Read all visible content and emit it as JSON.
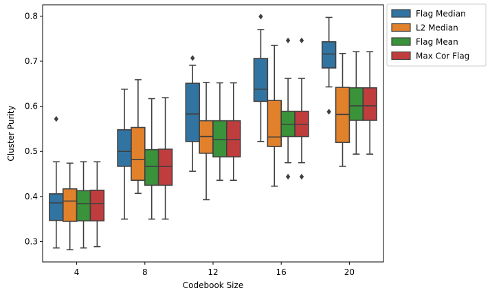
{
  "chart_data": {
    "type": "boxplot",
    "xlabel": "Codebook Size",
    "ylabel": "Cluster Purity",
    "categories": [
      "4",
      "8",
      "12",
      "16",
      "20"
    ],
    "ylim": [
      0.255,
      0.825
    ],
    "yticks": [
      0.3,
      0.4,
      0.5,
      0.6,
      0.7,
      0.8
    ],
    "ytick_labels": [
      "0.3",
      "0.4",
      "0.5",
      "0.6",
      "0.7",
      "0.8"
    ],
    "legend_position": "outside-top-right",
    "grid": false,
    "series": [
      {
        "name": "Flag Median",
        "color": "#3274a1",
        "boxes": [
          {
            "whislo": 0.286,
            "q1": 0.347,
            "med": 0.386,
            "q3": 0.406,
            "whishi": 0.477,
            "fliers": [
              0.572
            ]
          },
          {
            "whislo": 0.35,
            "q1": 0.467,
            "med": 0.5,
            "q3": 0.548,
            "whishi": 0.638,
            "fliers": []
          },
          {
            "whislo": 0.456,
            "q1": 0.522,
            "med": 0.583,
            "q3": 0.651,
            "whishi": 0.691,
            "fliers": [
              0.707
            ]
          },
          {
            "whislo": 0.522,
            "q1": 0.611,
            "med": 0.638,
            "q3": 0.706,
            "whishi": 0.77,
            "fliers": [
              0.799
            ]
          },
          {
            "whislo": 0.643,
            "q1": 0.685,
            "med": 0.716,
            "q3": 0.743,
            "whishi": 0.797,
            "fliers": [
              0.588
            ]
          }
        ]
      },
      {
        "name": "L2 Median",
        "color": "#e1812c",
        "boxes": [
          {
            "whislo": 0.282,
            "q1": 0.345,
            "med": 0.39,
            "q3": 0.417,
            "whishi": 0.474,
            "fliers": []
          },
          {
            "whislo": 0.407,
            "q1": 0.436,
            "med": 0.482,
            "q3": 0.553,
            "whishi": 0.659,
            "fliers": []
          },
          {
            "whislo": 0.393,
            "q1": 0.496,
            "med": 0.533,
            "q3": 0.568,
            "whishi": 0.653,
            "fliers": []
          },
          {
            "whislo": 0.423,
            "q1": 0.511,
            "med": 0.532,
            "q3": 0.613,
            "whishi": 0.735,
            "fliers": []
          },
          {
            "whislo": 0.467,
            "q1": 0.52,
            "med": 0.582,
            "q3": 0.642,
            "whishi": 0.717,
            "fliers": []
          }
        ]
      },
      {
        "name": "Flag Mean",
        "color": "#3a923a",
        "boxes": [
          {
            "whislo": 0.286,
            "q1": 0.346,
            "med": 0.384,
            "q3": 0.413,
            "whishi": 0.477,
            "fliers": []
          },
          {
            "whislo": 0.35,
            "q1": 0.425,
            "med": 0.467,
            "q3": 0.504,
            "whishi": 0.617,
            "fliers": []
          },
          {
            "whislo": 0.436,
            "q1": 0.488,
            "med": 0.526,
            "q3": 0.568,
            "whishi": 0.652,
            "fliers": []
          },
          {
            "whislo": 0.475,
            "q1": 0.533,
            "med": 0.56,
            "q3": 0.589,
            "whishi": 0.662,
            "fliers": [
              0.746,
              0.444
            ]
          },
          {
            "whislo": 0.494,
            "q1": 0.569,
            "med": 0.601,
            "q3": 0.641,
            "whishi": 0.721,
            "fliers": []
          }
        ]
      },
      {
        "name": "Max Cor Flag",
        "color": "#c03d3e",
        "boxes": [
          {
            "whislo": 0.289,
            "q1": 0.346,
            "med": 0.384,
            "q3": 0.414,
            "whishi": 0.477,
            "fliers": []
          },
          {
            "whislo": 0.35,
            "q1": 0.425,
            "med": 0.467,
            "q3": 0.505,
            "whishi": 0.619,
            "fliers": []
          },
          {
            "whislo": 0.436,
            "q1": 0.488,
            "med": 0.526,
            "q3": 0.568,
            "whishi": 0.652,
            "fliers": []
          },
          {
            "whislo": 0.475,
            "q1": 0.533,
            "med": 0.56,
            "q3": 0.589,
            "whishi": 0.662,
            "fliers": [
              0.746,
              0.444
            ]
          },
          {
            "whislo": 0.494,
            "q1": 0.569,
            "med": 0.601,
            "q3": 0.641,
            "whishi": 0.721,
            "fliers": []
          }
        ]
      }
    ]
  }
}
